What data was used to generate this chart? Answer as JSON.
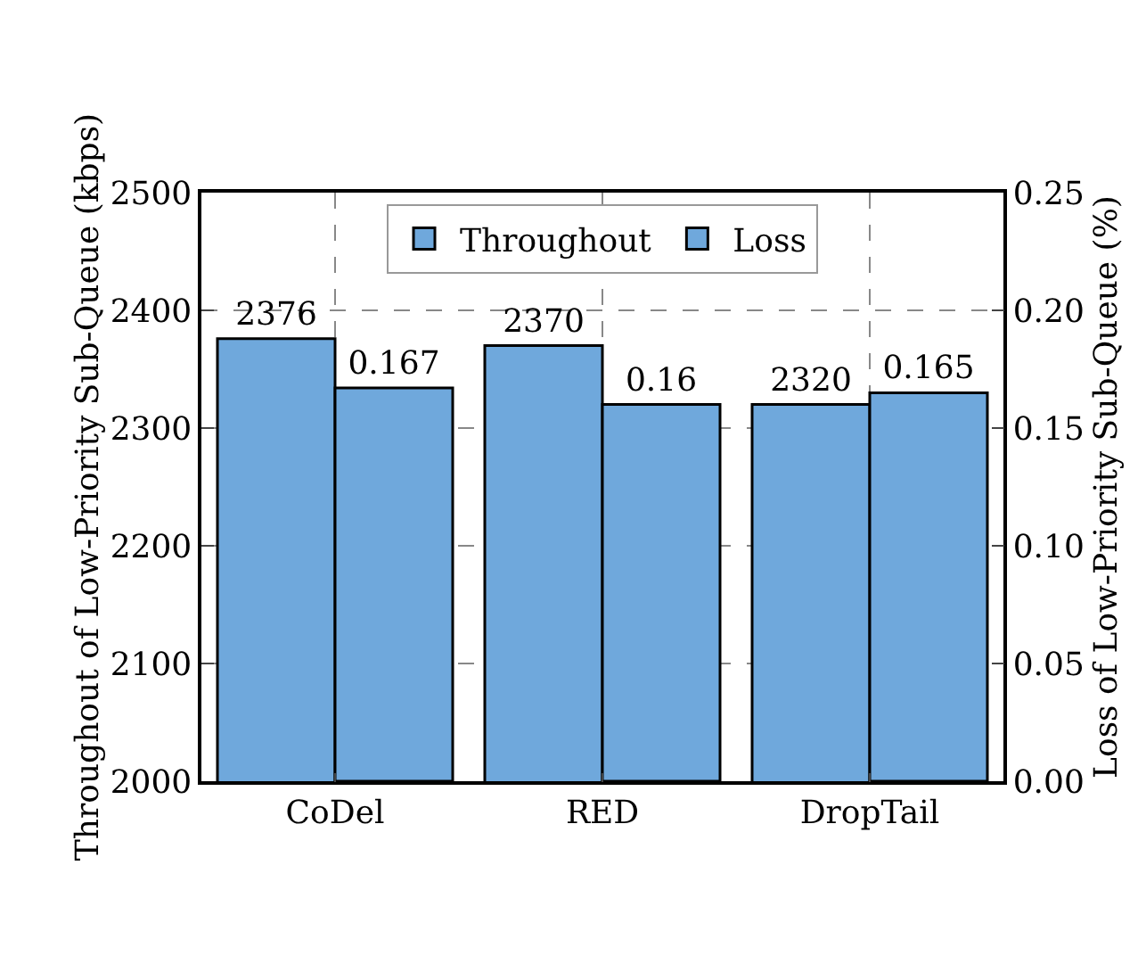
{
  "chart_data": {
    "type": "bar",
    "categories": [
      "CoDel",
      "RED",
      "DropTail"
    ],
    "ylabel": "Throughout of Low-Priority Sub-Queue (kbps)",
    "y2label": "Loss of Low-Priority Sub-Queue (%)",
    "series": [
      {
        "name": "Throughout",
        "color": "#6fa8dc",
        "values": [
          2376,
          2370,
          2320
        ]
      },
      {
        "name": "Loss",
        "color": "#6fa8dc",
        "values": [
          0.167,
          0.16,
          0.165
        ],
        "axis": "y2"
      }
    ],
    "ylim": [
      2000,
      2500
    ],
    "yticks": [
      2000,
      2100,
      2200,
      2300,
      2400,
      2500
    ],
    "y2lim": [
      0,
      0.25
    ],
    "y2ticks": [
      {
        "value": 0,
        "label": "0.00"
      },
      {
        "value": 0.05,
        "label": "0.05"
      },
      {
        "value": 0.1,
        "label": "0.10"
      },
      {
        "value": 0.15,
        "label": "0.15"
      },
      {
        "value": 0.2,
        "label": "0.20"
      },
      {
        "value": 0.25,
        "label": "0.25"
      }
    ],
    "grid": true,
    "legend": "top",
    "data_labels": true
  }
}
